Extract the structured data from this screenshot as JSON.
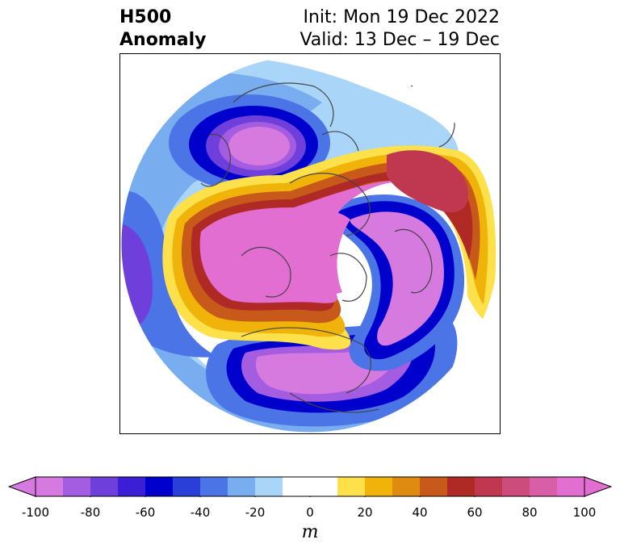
{
  "header": {
    "left_line1": "H500",
    "left_line2": "Anomaly",
    "right_line1": "Init: Mon 19 Dec 2022",
    "right_line2": "Valid: 13 Dec – 19 Dec"
  },
  "colorbar": {
    "unit": "m",
    "ticks": [
      "-100",
      "-80",
      "-60",
      "-40",
      "-20",
      "0",
      "20",
      "40",
      "60",
      "80",
      "100"
    ],
    "bins": [
      {
        "from": -100,
        "to": -90,
        "color": "#d67ae0"
      },
      {
        "from": -90,
        "to": -80,
        "color": "#a45ce0"
      },
      {
        "from": -80,
        "to": -70,
        "color": "#6f3fdb"
      },
      {
        "from": -70,
        "to": -60,
        "color": "#3a1fd6"
      },
      {
        "from": -60,
        "to": -50,
        "color": "#0000cc"
      },
      {
        "from": -50,
        "to": -40,
        "color": "#2a3fd8"
      },
      {
        "from": -40,
        "to": -30,
        "color": "#4b74e6"
      },
      {
        "from": -30,
        "to": -20,
        "color": "#78adf0"
      },
      {
        "from": -20,
        "to": -10,
        "color": "#a9d6f8"
      },
      {
        "from": -10,
        "to": 10,
        "color": "#ffffff"
      },
      {
        "from": 10,
        "to": 20,
        "color": "#fde04a"
      },
      {
        "from": 20,
        "to": 30,
        "color": "#f0b30a"
      },
      {
        "from": 30,
        "to": 40,
        "color": "#df8a10"
      },
      {
        "from": 40,
        "to": 50,
        "color": "#c75a1a"
      },
      {
        "from": 50,
        "to": 60,
        "color": "#b02a25"
      },
      {
        "from": 60,
        "to": 70,
        "color": "#c03850"
      },
      {
        "from": 70,
        "to": 80,
        "color": "#cc4c7c"
      },
      {
        "from": 80,
        "to": 90,
        "color": "#d85ea8"
      },
      {
        "from": 90,
        "to": 100,
        "color": "#e26ed2"
      }
    ],
    "extend_low_color": "#d67ae0",
    "extend_high_color": "#e26ed2"
  }
}
